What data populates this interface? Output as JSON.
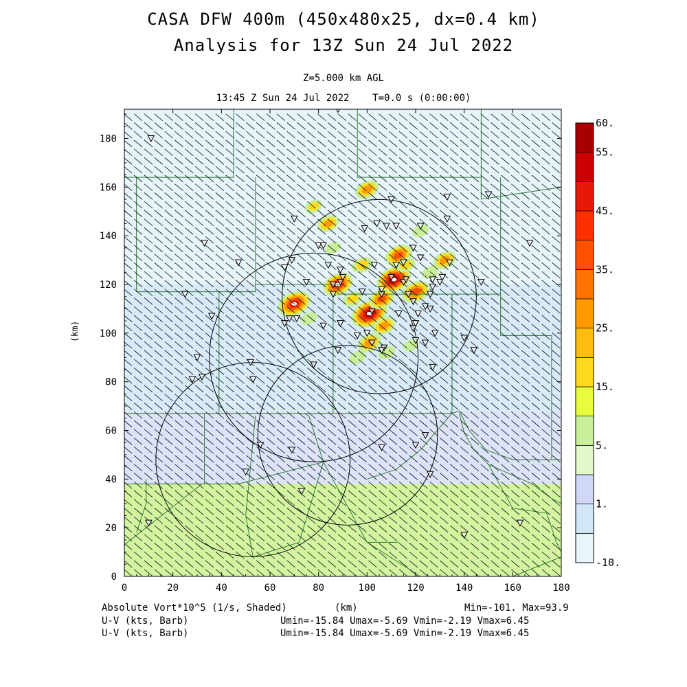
{
  "header": {
    "title1": "CASA DFW 400m (450x480x25, dx=0.4 km)",
    "title2": "Analysis for 13Z Sun 24 Jul 2022",
    "level": "Z=5.000 km AGL",
    "time": "13:45 Z Sun 24 Jul 2022    T=0.0 s (0:00:00)"
  },
  "footer": {
    "field1": "Absolute Vort*10^5 (1/s, Shaded)",
    "xunit": "(km)",
    "minmax": "Min=-101. Max=93.9",
    "field2": "U-V (kts, Barb)",
    "stats2": "Umin=-15.84 Umax=-5.69 Vmin=-2.19 Vmax=6.45",
    "field3": "U-V (kts, Barb)",
    "stats3": "Umin=-15.84 Umax=-5.69 Vmin=-2.19 Vmax=6.45"
  },
  "chart_data": {
    "type": "heatmap",
    "title": "CASA DFW 400m (450x480x25, dx=0.4 km)",
    "subtitle": "Analysis for 13Z Sun 24 Jul 2022",
    "xlabel": "(km)",
    "ylabel": "(km)",
    "xlim": [
      0,
      180
    ],
    "ylim": [
      0,
      192
    ],
    "xticks": [
      "0",
      "20",
      "40",
      "60",
      "80",
      "100",
      "120",
      "140",
      "160",
      "180"
    ],
    "yticks": [
      "0",
      "20",
      "40",
      "60",
      "80",
      "100",
      "120",
      "140",
      "160",
      "180"
    ],
    "colorbar": {
      "labels": [
        "60.",
        "55.",
        "45.",
        "35.",
        "25.",
        "15.",
        "5.",
        "1.",
        "-10."
      ],
      "colors": [
        "#e8f6fc",
        "#d2e6f6",
        "#d0d8f6",
        "#e2f8c8",
        "#c8f09a",
        "#e8fc3c",
        "#ffd820",
        "#ffbc10",
        "#ff9a00",
        "#ff7400",
        "#ff5000",
        "#ff3000",
        "#e81808",
        "#cc0000",
        "#a80000"
      ]
    },
    "background_bands": [
      {
        "ymin": 0,
        "ymax": 38,
        "color": "#d4f5a0"
      },
      {
        "ymin": 38,
        "ymax": 68,
        "color": "#dde3f8"
      },
      {
        "ymin": 68,
        "ymax": 120,
        "color": "#d8ebf8"
      },
      {
        "ymin": 120,
        "ymax": 192,
        "color": "#e6f4fb"
      }
    ],
    "radars": [
      {
        "cx": 105,
        "cy": 115,
        "r": 40
      },
      {
        "cx": 78,
        "cy": 90,
        "r": 43
      },
      {
        "cx": 92,
        "cy": 58,
        "r": 37
      },
      {
        "cx": 53,
        "cy": 48,
        "r": 40
      }
    ],
    "vorticity_cells": [
      {
        "x": 101,
        "y": 108,
        "v": 60
      },
      {
        "x": 111,
        "y": 122,
        "v": 55
      },
      {
        "x": 70,
        "y": 112,
        "v": 52
      },
      {
        "x": 88,
        "y": 120,
        "v": 45
      },
      {
        "x": 113,
        "y": 132,
        "v": 38
      },
      {
        "x": 120,
        "y": 117,
        "v": 40
      },
      {
        "x": 106,
        "y": 114,
        "v": 35
      },
      {
        "x": 101,
        "y": 96,
        "v": 30
      },
      {
        "x": 107,
        "y": 103,
        "v": 28
      },
      {
        "x": 100,
        "y": 159,
        "v": 30
      },
      {
        "x": 84,
        "y": 145,
        "v": 25
      },
      {
        "x": 98,
        "y": 128,
        "v": 22
      },
      {
        "x": 132,
        "y": 130,
        "v": 28
      },
      {
        "x": 78,
        "y": 152,
        "v": 15
      },
      {
        "x": 94,
        "y": 114,
        "v": 18
      },
      {
        "x": 126,
        "y": 125,
        "v": 12
      },
      {
        "x": 116,
        "y": 128,
        "v": 18
      },
      {
        "x": 96,
        "y": 90,
        "v": 12
      },
      {
        "x": 86,
        "y": 135,
        "v": 10
      },
      {
        "x": 76,
        "y": 106,
        "v": 12
      },
      {
        "x": 118,
        "y": 95,
        "v": 10
      },
      {
        "x": 108,
        "y": 92,
        "v": 14
      },
      {
        "x": 122,
        "y": 142,
        "v": 12
      }
    ],
    "stations": [
      [
        11,
        180
      ],
      [
        33,
        137
      ],
      [
        47,
        129
      ],
      [
        25,
        116
      ],
      [
        36,
        107
      ],
      [
        30,
        90
      ],
      [
        32,
        82
      ],
      [
        28,
        81
      ],
      [
        52,
        88
      ],
      [
        53,
        81
      ],
      [
        56,
        54
      ],
      [
        50,
        43
      ],
      [
        73,
        35
      ],
      [
        10,
        22
      ],
      [
        69,
        52
      ],
      [
        70,
        147
      ],
      [
        69,
        130
      ],
      [
        66,
        127
      ],
      [
        66,
        104
      ],
      [
        68,
        106
      ],
      [
        71,
        106
      ],
      [
        75,
        121
      ],
      [
        80,
        136
      ],
      [
        82,
        136
      ],
      [
        84,
        128
      ],
      [
        86,
        120
      ],
      [
        86,
        116
      ],
      [
        89,
        121
      ],
      [
        89,
        126
      ],
      [
        90,
        123
      ],
      [
        88,
        93
      ],
      [
        96,
        99
      ],
      [
        100,
        100
      ],
      [
        82,
        103
      ],
      [
        78,
        87
      ],
      [
        89,
        104
      ],
      [
        88,
        192
      ],
      [
        99,
        143
      ],
      [
        104,
        145
      ],
      [
        108,
        144
      ],
      [
        110,
        155
      ],
      [
        112,
        144
      ],
      [
        115,
        129
      ],
      [
        112,
        128
      ],
      [
        119,
        135
      ],
      [
        122,
        131
      ],
      [
        122,
        144
      ],
      [
        119,
        113
      ],
      [
        121,
        108
      ],
      [
        124,
        111
      ],
      [
        120,
        104
      ],
      [
        119,
        102
      ],
      [
        124,
        96
      ],
      [
        126,
        110
      ],
      [
        128,
        100
      ],
      [
        133,
        147
      ],
      [
        133,
        156
      ],
      [
        134,
        129
      ],
      [
        127,
        122
      ],
      [
        127,
        119
      ],
      [
        126,
        116
      ],
      [
        115,
        121
      ],
      [
        117,
        116
      ],
      [
        116,
        122
      ],
      [
        110,
        123
      ],
      [
        107,
        94
      ],
      [
        106,
        93
      ],
      [
        106,
        53
      ],
      [
        120,
        54
      ],
      [
        124,
        58
      ],
      [
        126,
        42
      ],
      [
        127,
        86
      ],
      [
        140,
        98
      ],
      [
        144,
        93
      ],
      [
        140,
        17
      ],
      [
        147,
        121
      ],
      [
        150,
        157
      ],
      [
        167,
        137
      ],
      [
        163,
        22
      ],
      [
        130,
        121
      ],
      [
        131,
        123
      ],
      [
        106,
        116
      ],
      [
        98,
        117
      ],
      [
        106,
        118
      ],
      [
        120,
        97
      ],
      [
        102,
        109
      ],
      [
        103,
        128
      ],
      [
        113,
        108
      ],
      [
        102,
        96
      ]
    ],
    "county_lines": [
      [
        [
          45,
          192
        ],
        [
          45,
          164
        ],
        [
          0,
          164
        ]
      ],
      [
        [
          96,
          192
        ],
        [
          96,
          164
        ],
        [
          147,
          164
        ],
        [
          147,
          155
        ]
      ],
      [
        [
          147,
          192
        ],
        [
          147,
          155
        ]
      ],
      [
        [
          5,
          164
        ],
        [
          5,
          117
        ],
        [
          54,
          117
        ],
        [
          54,
          164
        ]
      ],
      [
        [
          39,
          117
        ],
        [
          39,
          67
        ],
        [
          0,
          67
        ]
      ],
      [
        [
          54,
          117
        ],
        [
          54,
          120
        ],
        [
          88,
          120
        ],
        [
          88,
          116
        ],
        [
          155,
          116
        ]
      ],
      [
        [
          155,
          164
        ],
        [
          155,
          116
        ],
        [
          155,
          99
        ],
        [
          176,
          99
        ],
        [
          176,
          48
        ]
      ],
      [
        [
          86,
          116
        ],
        [
          86,
          67
        ],
        [
          39,
          67
        ]
      ],
      [
        [
          86,
          67
        ],
        [
          135,
          67
        ],
        [
          135,
          116
        ]
      ],
      [
        [
          33,
          67
        ],
        [
          33,
          38
        ],
        [
          0,
          38
        ]
      ],
      [
        [
          0,
          13
        ],
        [
          32,
          38
        ],
        [
          47,
          38
        ],
        [
          82,
          47
        ],
        [
          76,
          66
        ],
        [
          74,
          67
        ]
      ],
      [
        [
          82,
          47
        ],
        [
          100,
          14
        ],
        [
          113,
          14
        ]
      ],
      [
        [
          54,
          66
        ],
        [
          50,
          25
        ],
        [
          53,
          8
        ],
        [
          72,
          14
        ],
        [
          82,
          47
        ]
      ],
      [
        [
          138,
          67
        ],
        [
          140,
          59
        ],
        [
          144,
          52
        ],
        [
          150,
          46
        ],
        [
          168,
          38
        ],
        [
          176,
          32
        ],
        [
          180,
          30
        ]
      ],
      [
        [
          135,
          67
        ],
        [
          138,
          68
        ],
        [
          142,
          60
        ],
        [
          149,
          52
        ],
        [
          160,
          48
        ],
        [
          180,
          48
        ]
      ],
      [
        [
          150,
          46
        ],
        [
          160,
          28
        ],
        [
          174,
          26
        ],
        [
          178,
          14
        ],
        [
          180,
          10
        ]
      ],
      [
        [
          147,
          155
        ],
        [
          180,
          160
        ]
      ],
      [
        [
          160,
          0
        ],
        [
          180,
          8
        ]
      ],
      [
        [
          100,
          14
        ],
        [
          122,
          0
        ]
      ],
      [
        [
          135,
          67
        ],
        [
          122,
          52
        ],
        [
          112,
          44
        ],
        [
          100,
          40
        ]
      ],
      [
        [
          9,
          40
        ],
        [
          9,
          30
        ],
        [
          5,
          18
        ]
      ]
    ]
  }
}
